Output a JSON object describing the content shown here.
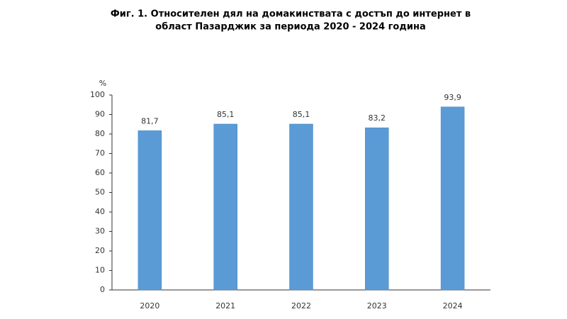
{
  "chart_data": {
    "type": "bar",
    "title": [
      "Фиг. 1. Относителен дял на домакинствата с достъп до интернет в",
      "област Пазарджик за периода 2020 - 2024 година"
    ],
    "y_label": "%",
    "categories": [
      "2020",
      "2021",
      "2022",
      "2023",
      "2024"
    ],
    "values": [
      81.7,
      85.1,
      85.1,
      83.2,
      93.9
    ],
    "value_labels": [
      "81,7",
      "85,1",
      "85,1",
      "83,2",
      "93,9"
    ],
    "color": "#5b9bd5",
    "ylim": [
      0,
      100
    ],
    "yticks": [
      0,
      10,
      20,
      30,
      40,
      50,
      60,
      70,
      80,
      90,
      100
    ],
    "grid": false
  }
}
